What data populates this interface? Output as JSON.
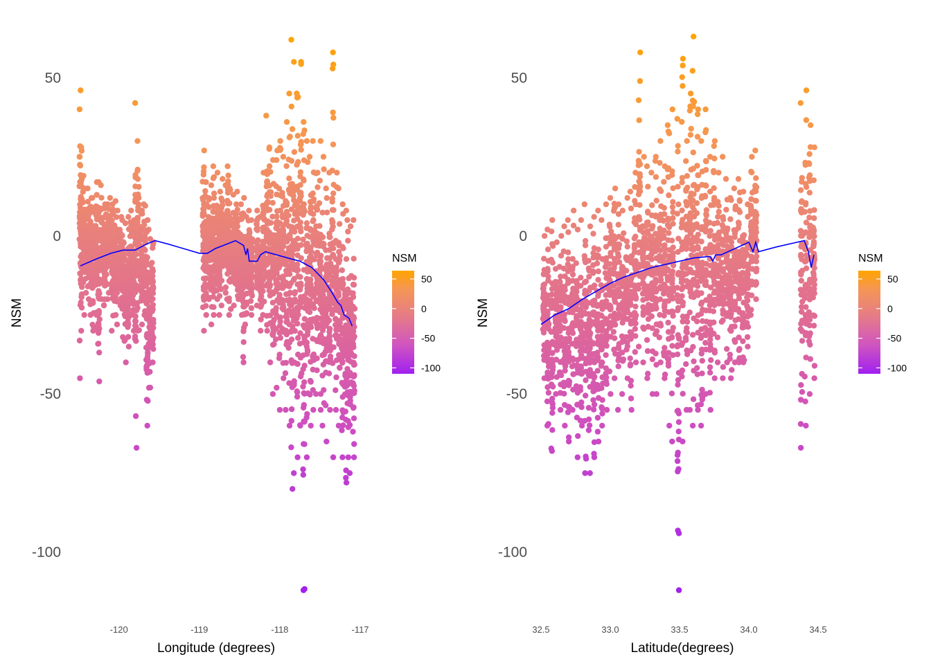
{
  "chart_data": [
    {
      "type": "scatter",
      "title": "",
      "xlabel": "Longitude (degrees)",
      "ylabel": "NSM",
      "xlim": [
        -120.6,
        -117.0
      ],
      "ylim": [
        -118,
        68
      ],
      "x_ticks": [
        {
          "value": -120,
          "label": "-120"
        },
        {
          "value": -119,
          "label": "-119"
        },
        {
          "value": -118,
          "label": "-118"
        },
        {
          "value": -117,
          "label": "-117"
        }
      ],
      "y_ticks": [
        {
          "value": 50,
          "label": "50"
        },
        {
          "value": 0,
          "label": "0"
        },
        {
          "value": -50,
          "label": "-50"
        },
        {
          "value": -100,
          "label": "-100"
        }
      ],
      "grid": false,
      "legend": {
        "title": "NSM",
        "position": "right",
        "range": [
          -110,
          64
        ],
        "ticks": [
          {
            "value": 50,
            "label": "50"
          },
          {
            "value": 0,
            "label": "0"
          },
          {
            "value": -50,
            "label": "-50"
          },
          {
            "value": -100,
            "label": "-100"
          }
        ]
      },
      "point_columns": [
        [
          -120.48,
          -45,
          46
        ],
        [
          -120.47,
          -30,
          28
        ],
        [
          -120.44,
          -25,
          19
        ],
        [
          -120.42,
          -18,
          15
        ],
        [
          -120.38,
          -20,
          15
        ],
        [
          -120.35,
          -25,
          12
        ],
        [
          -120.32,
          -30,
          12
        ],
        [
          -120.28,
          -25,
          17
        ],
        [
          -120.25,
          -46,
          17
        ],
        [
          -120.22,
          -20,
          16
        ],
        [
          -120.18,
          -22,
          10
        ],
        [
          -120.15,
          -20,
          10
        ],
        [
          -120.12,
          -18,
          12
        ],
        [
          -120.08,
          -30,
          10
        ],
        [
          -120.05,
          -25,
          11
        ],
        [
          -120.02,
          -28,
          8
        ],
        [
          -119.98,
          -22,
          6
        ],
        [
          -119.95,
          -32,
          5
        ],
        [
          -119.92,
          -40,
          4
        ],
        [
          -119.88,
          -35,
          6
        ],
        [
          -119.85,
          -25,
          8
        ],
        [
          -119.82,
          -30,
          5
        ],
        [
          -119.79,
          -67,
          42
        ],
        [
          -119.76,
          -30,
          30
        ],
        [
          -119.72,
          -28,
          8
        ],
        [
          -119.68,
          -25,
          10
        ],
        [
          -119.65,
          -60,
          5
        ],
        [
          -119.62,
          -48,
          2
        ],
        [
          -119.58,
          -40,
          -2
        ],
        [
          -118.95,
          -30,
          27
        ],
        [
          -118.92,
          -25,
          17
        ],
        [
          -118.88,
          -20,
          12
        ],
        [
          -118.85,
          -28,
          16
        ],
        [
          -118.82,
          -25,
          22
        ],
        [
          -118.78,
          -20,
          20
        ],
        [
          -118.75,
          -25,
          14
        ],
        [
          -118.72,
          -22,
          18
        ],
        [
          -118.68,
          -18,
          16
        ],
        [
          -118.65,
          -20,
          22
        ],
        [
          -118.62,
          -25,
          15
        ],
        [
          -118.58,
          -22,
          13
        ],
        [
          -118.55,
          -15,
          10
        ],
        [
          -118.52,
          -20,
          14
        ],
        [
          -118.48,
          -25,
          10
        ],
        [
          -118.45,
          -40,
          12
        ],
        [
          -118.42,
          -28,
          6
        ],
        [
          -118.38,
          -18,
          8
        ],
        [
          -118.35,
          -25,
          5
        ],
        [
          -118.28,
          -22,
          8
        ],
        [
          -118.24,
          -30,
          6
        ],
        [
          -118.2,
          -25,
          20
        ],
        [
          -118.16,
          -30,
          38
        ],
        [
          -118.12,
          -40,
          28
        ],
        [
          -118.08,
          -50,
          24
        ],
        [
          -118.04,
          -48,
          27
        ],
        [
          -118.0,
          -55,
          30
        ],
        [
          -117.96,
          -45,
          25
        ],
        [
          -117.92,
          -55,
          36
        ],
        [
          -117.88,
          -60,
          45
        ],
        [
          -117.85,
          -80,
          62
        ],
        [
          -117.82,
          -75,
          55
        ],
        [
          -117.78,
          -70,
          45
        ],
        [
          -117.74,
          -60,
          55
        ],
        [
          -117.7,
          -112,
          36
        ],
        [
          -117.66,
          -70,
          30
        ],
        [
          -117.62,
          -60,
          25
        ],
        [
          -117.58,
          -55,
          30
        ],
        [
          -117.54,
          -50,
          20
        ],
        [
          -117.5,
          -55,
          30
        ],
        [
          -117.46,
          -60,
          25
        ],
        [
          -117.42,
          -65,
          15
        ],
        [
          -117.38,
          -55,
          20
        ],
        [
          -117.34,
          -70,
          58
        ],
        [
          -117.3,
          -55,
          20
        ],
        [
          -117.26,
          -60,
          15
        ],
        [
          -117.22,
          -70,
          10
        ],
        [
          -117.18,
          -78,
          8
        ],
        [
          -117.15,
          -70,
          5
        ],
        [
          -117.12,
          -75,
          3
        ],
        [
          -117.08,
          -70,
          5
        ]
      ],
      "trend_line": [
        [
          -120.48,
          -9.5
        ],
        [
          -120.3,
          -7.5
        ],
        [
          -120.1,
          -5.5
        ],
        [
          -119.95,
          -4.5
        ],
        [
          -119.8,
          -4.5
        ],
        [
          -119.65,
          -2.5
        ],
        [
          -119.55,
          -1.5
        ],
        [
          -119.4,
          -2.5
        ],
        [
          -119.2,
          -4
        ],
        [
          -119.0,
          -5.5
        ],
        [
          -118.9,
          -5.5
        ],
        [
          -118.8,
          -4
        ],
        [
          -118.7,
          -3
        ],
        [
          -118.55,
          -1.5
        ],
        [
          -118.45,
          -3
        ],
        [
          -118.42,
          -6
        ],
        [
          -118.4,
          -4
        ],
        [
          -118.38,
          -8
        ],
        [
          -118.28,
          -8
        ],
        [
          -118.24,
          -6
        ],
        [
          -118.18,
          -5
        ],
        [
          -117.9,
          -7
        ],
        [
          -117.75,
          -8
        ],
        [
          -117.6,
          -10
        ],
        [
          -117.45,
          -14
        ],
        [
          -117.35,
          -18
        ],
        [
          -117.28,
          -21
        ],
        [
          -117.24,
          -22
        ],
        [
          -117.2,
          -25
        ],
        [
          -117.14,
          -26
        ],
        [
          -117.1,
          -28.5
        ]
      ]
    },
    {
      "type": "scatter",
      "title": "",
      "xlabel": "Latitude(degrees)",
      "ylabel": "NSM",
      "xlim": [
        32.47,
        34.57
      ],
      "ylim": [
        -118,
        68
      ],
      "x_ticks": [
        {
          "value": 32.5,
          "label": "32.5"
        },
        {
          "value": 33.0,
          "label": "33.0"
        },
        {
          "value": 33.5,
          "label": "33.5"
        },
        {
          "value": 34.0,
          "label": "34.0"
        },
        {
          "value": 34.5,
          "label": "34.5"
        }
      ],
      "y_ticks": [
        {
          "value": 50,
          "label": "50"
        },
        {
          "value": 0,
          "label": "0"
        },
        {
          "value": -50,
          "label": "-50"
        },
        {
          "value": -100,
          "label": "-100"
        }
      ],
      "grid": false,
      "legend": {
        "title": "NSM",
        "position": "right",
        "range": [
          -110,
          64
        ],
        "ticks": [
          {
            "value": 50,
            "label": "50"
          },
          {
            "value": 0,
            "label": "0"
          },
          {
            "value": -50,
            "label": "-50"
          },
          {
            "value": -100,
            "label": "-100"
          }
        ]
      },
      "point_columns": [
        [
          32.52,
          -45,
          0
        ],
        [
          32.55,
          -60,
          2
        ],
        [
          32.58,
          -68,
          5
        ],
        [
          32.61,
          -50,
          -2
        ],
        [
          32.64,
          -55,
          0
        ],
        [
          32.67,
          -60,
          3
        ],
        [
          32.7,
          -65,
          5
        ],
        [
          32.73,
          -55,
          8
        ],
        [
          32.76,
          -70,
          2
        ],
        [
          32.79,
          -60,
          5
        ],
        [
          32.82,
          -75,
          10
        ],
        [
          32.85,
          -75,
          3
        ],
        [
          32.88,
          -70,
          6
        ],
        [
          32.91,
          -65,
          8
        ],
        [
          32.94,
          -60,
          5
        ],
        [
          32.97,
          -55,
          10
        ],
        [
          33.0,
          -50,
          12
        ],
        [
          33.03,
          -45,
          15
        ],
        [
          33.06,
          -55,
          10
        ],
        [
          33.09,
          -50,
          8
        ],
        [
          33.12,
          -45,
          12
        ],
        [
          33.15,
          -55,
          14
        ],
        [
          33.18,
          -40,
          20
        ],
        [
          33.21,
          -35,
          58
        ],
        [
          33.24,
          -40,
          25
        ],
        [
          33.27,
          -45,
          22
        ],
        [
          33.3,
          -50,
          20
        ],
        [
          33.33,
          -50,
          25
        ],
        [
          33.36,
          -40,
          30
        ],
        [
          33.39,
          -45,
          22
        ],
        [
          33.42,
          -60,
          35
        ],
        [
          33.45,
          -65,
          40
        ],
        [
          33.49,
          -112,
          37
        ],
        [
          33.52,
          -65,
          56
        ],
        [
          33.55,
          -55,
          30
        ],
        [
          33.58,
          -55,
          45
        ],
        [
          33.6,
          -60,
          63
        ],
        [
          33.63,
          -55,
          40
        ],
        [
          33.66,
          -60,
          30
        ],
        [
          33.69,
          -50,
          40
        ],
        [
          33.72,
          -55,
          25
        ],
        [
          33.75,
          -45,
          30
        ],
        [
          33.78,
          -40,
          20
        ],
        [
          33.81,
          -45,
          25
        ],
        [
          33.84,
          -40,
          18
        ],
        [
          33.87,
          -45,
          12
        ],
        [
          33.9,
          -40,
          15
        ],
        [
          33.93,
          -40,
          18
        ],
        [
          33.96,
          -40,
          14
        ],
        [
          33.99,
          -35,
          10
        ],
        [
          34.02,
          -25,
          25
        ],
        [
          34.05,
          -20,
          27
        ],
        [
          34.38,
          -67,
          42
        ],
        [
          34.41,
          -60,
          46
        ],
        [
          34.44,
          -50,
          35
        ],
        [
          34.47,
          -45,
          28
        ]
      ],
      "trend_line": [
        [
          32.5,
          -28
        ],
        [
          32.6,
          -25
        ],
        [
          32.7,
          -23
        ],
        [
          32.8,
          -20
        ],
        [
          32.9,
          -17.5
        ],
        [
          33.0,
          -15
        ],
        [
          33.1,
          -13
        ],
        [
          33.2,
          -11.5
        ],
        [
          33.3,
          -10
        ],
        [
          33.45,
          -8.5
        ],
        [
          33.6,
          -7
        ],
        [
          33.72,
          -6.5
        ],
        [
          33.74,
          -8
        ],
        [
          33.76,
          -6
        ],
        [
          33.8,
          -6
        ],
        [
          33.9,
          -4
        ],
        [
          34.0,
          -2
        ],
        [
          34.03,
          -5
        ],
        [
          34.05,
          -2
        ],
        [
          34.07,
          -5
        ],
        [
          34.2,
          -3.5
        ],
        [
          34.4,
          -1.5
        ],
        [
          34.43,
          -5
        ],
        [
          34.45,
          -10
        ],
        [
          34.47,
          -6
        ]
      ]
    }
  ]
}
